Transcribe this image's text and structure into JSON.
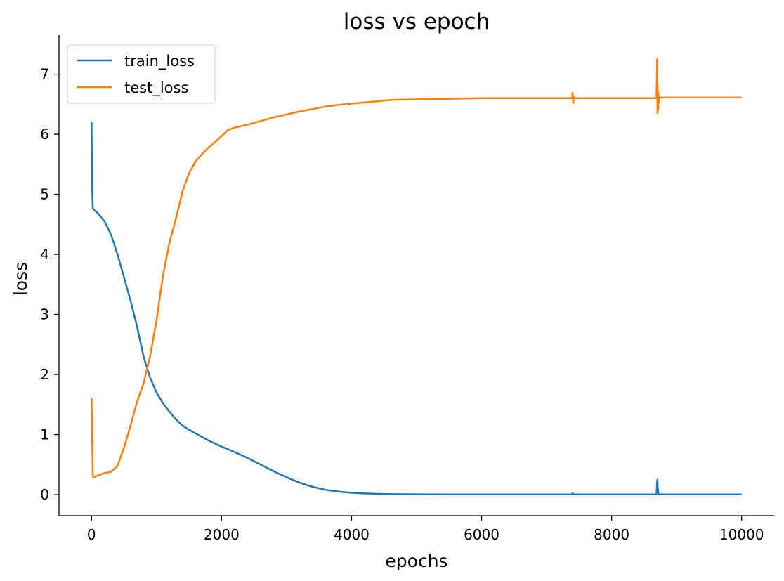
{
  "chart_data": {
    "type": "line",
    "title": "loss vs epoch",
    "xlabel": "epochs",
    "ylabel": "loss",
    "xlim": [
      -500,
      10500
    ],
    "ylim": [
      -0.35,
      7.65
    ],
    "xticks": [
      0,
      2000,
      4000,
      6000,
      8000,
      10000
    ],
    "yticks": [
      0,
      1,
      2,
      3,
      4,
      5,
      6,
      7
    ],
    "grid": false,
    "legend": "top-left",
    "series": [
      {
        "name": "train_loss",
        "color": "#1f77b4",
        "x": [
          0,
          10,
          20,
          40,
          100,
          200,
          300,
          400,
          500,
          600,
          700,
          800,
          900,
          1000,
          1100,
          1200,
          1300,
          1400,
          1500,
          1600,
          1700,
          1800,
          1900,
          2000,
          2200,
          2400,
          2600,
          2800,
          3000,
          3200,
          3400,
          3600,
          3800,
          4000,
          4200,
          4400,
          4600,
          5000,
          5500,
          6000,
          7000,
          7390,
          7400,
          7410,
          8000,
          8690,
          8700,
          8705,
          8710,
          8720,
          8730,
          9000,
          10000
        ],
        "values": [
          6.2,
          5.1,
          4.76,
          4.74,
          4.68,
          4.55,
          4.33,
          4.0,
          3.62,
          3.23,
          2.8,
          2.3,
          1.95,
          1.7,
          1.52,
          1.38,
          1.25,
          1.15,
          1.08,
          1.02,
          0.96,
          0.9,
          0.85,
          0.8,
          0.71,
          0.61,
          0.5,
          0.39,
          0.29,
          0.2,
          0.13,
          0.08,
          0.05,
          0.03,
          0.02,
          0.012,
          0.008,
          0.005,
          0.004,
          0.003,
          0.003,
          0.003,
          0.03,
          0.003,
          0.003,
          0.003,
          0.22,
          0.25,
          0.12,
          0.02,
          0.003,
          0.003,
          0.003
        ]
      },
      {
        "name": "test_loss",
        "color": "#ff7f0e",
        "x": [
          0,
          20,
          40,
          60,
          100,
          200,
          300,
          400,
          500,
          600,
          700,
          800,
          900,
          1000,
          1100,
          1200,
          1300,
          1400,
          1500,
          1600,
          1700,
          1800,
          1900,
          2000,
          2100,
          2200,
          2400,
          2600,
          2800,
          3000,
          3200,
          3400,
          3600,
          3800,
          4000,
          4200,
          4400,
          4600,
          5000,
          5500,
          6000,
          6500,
          7000,
          7390,
          7400,
          7410,
          7420,
          7430,
          8000,
          8680,
          8690,
          8700,
          8705,
          8710,
          8715,
          8720,
          8725,
          8730,
          8740,
          8760,
          8800,
          9000,
          10000
        ],
        "values": [
          1.61,
          0.3,
          0.29,
          0.3,
          0.32,
          0.36,
          0.38,
          0.48,
          0.78,
          1.15,
          1.55,
          1.85,
          2.3,
          2.9,
          3.65,
          4.2,
          4.6,
          5.05,
          5.35,
          5.55,
          5.67,
          5.78,
          5.87,
          5.97,
          6.07,
          6.11,
          6.16,
          6.22,
          6.28,
          6.33,
          6.38,
          6.42,
          6.46,
          6.49,
          6.51,
          6.53,
          6.55,
          6.57,
          6.58,
          6.59,
          6.6,
          6.6,
          6.6,
          6.6,
          6.69,
          6.52,
          6.62,
          6.6,
          6.6,
          6.6,
          6.6,
          7.25,
          6.35,
          6.8,
          6.4,
          6.68,
          6.52,
          6.62,
          6.6,
          6.61,
          6.61,
          6.61,
          6.61
        ]
      }
    ]
  }
}
